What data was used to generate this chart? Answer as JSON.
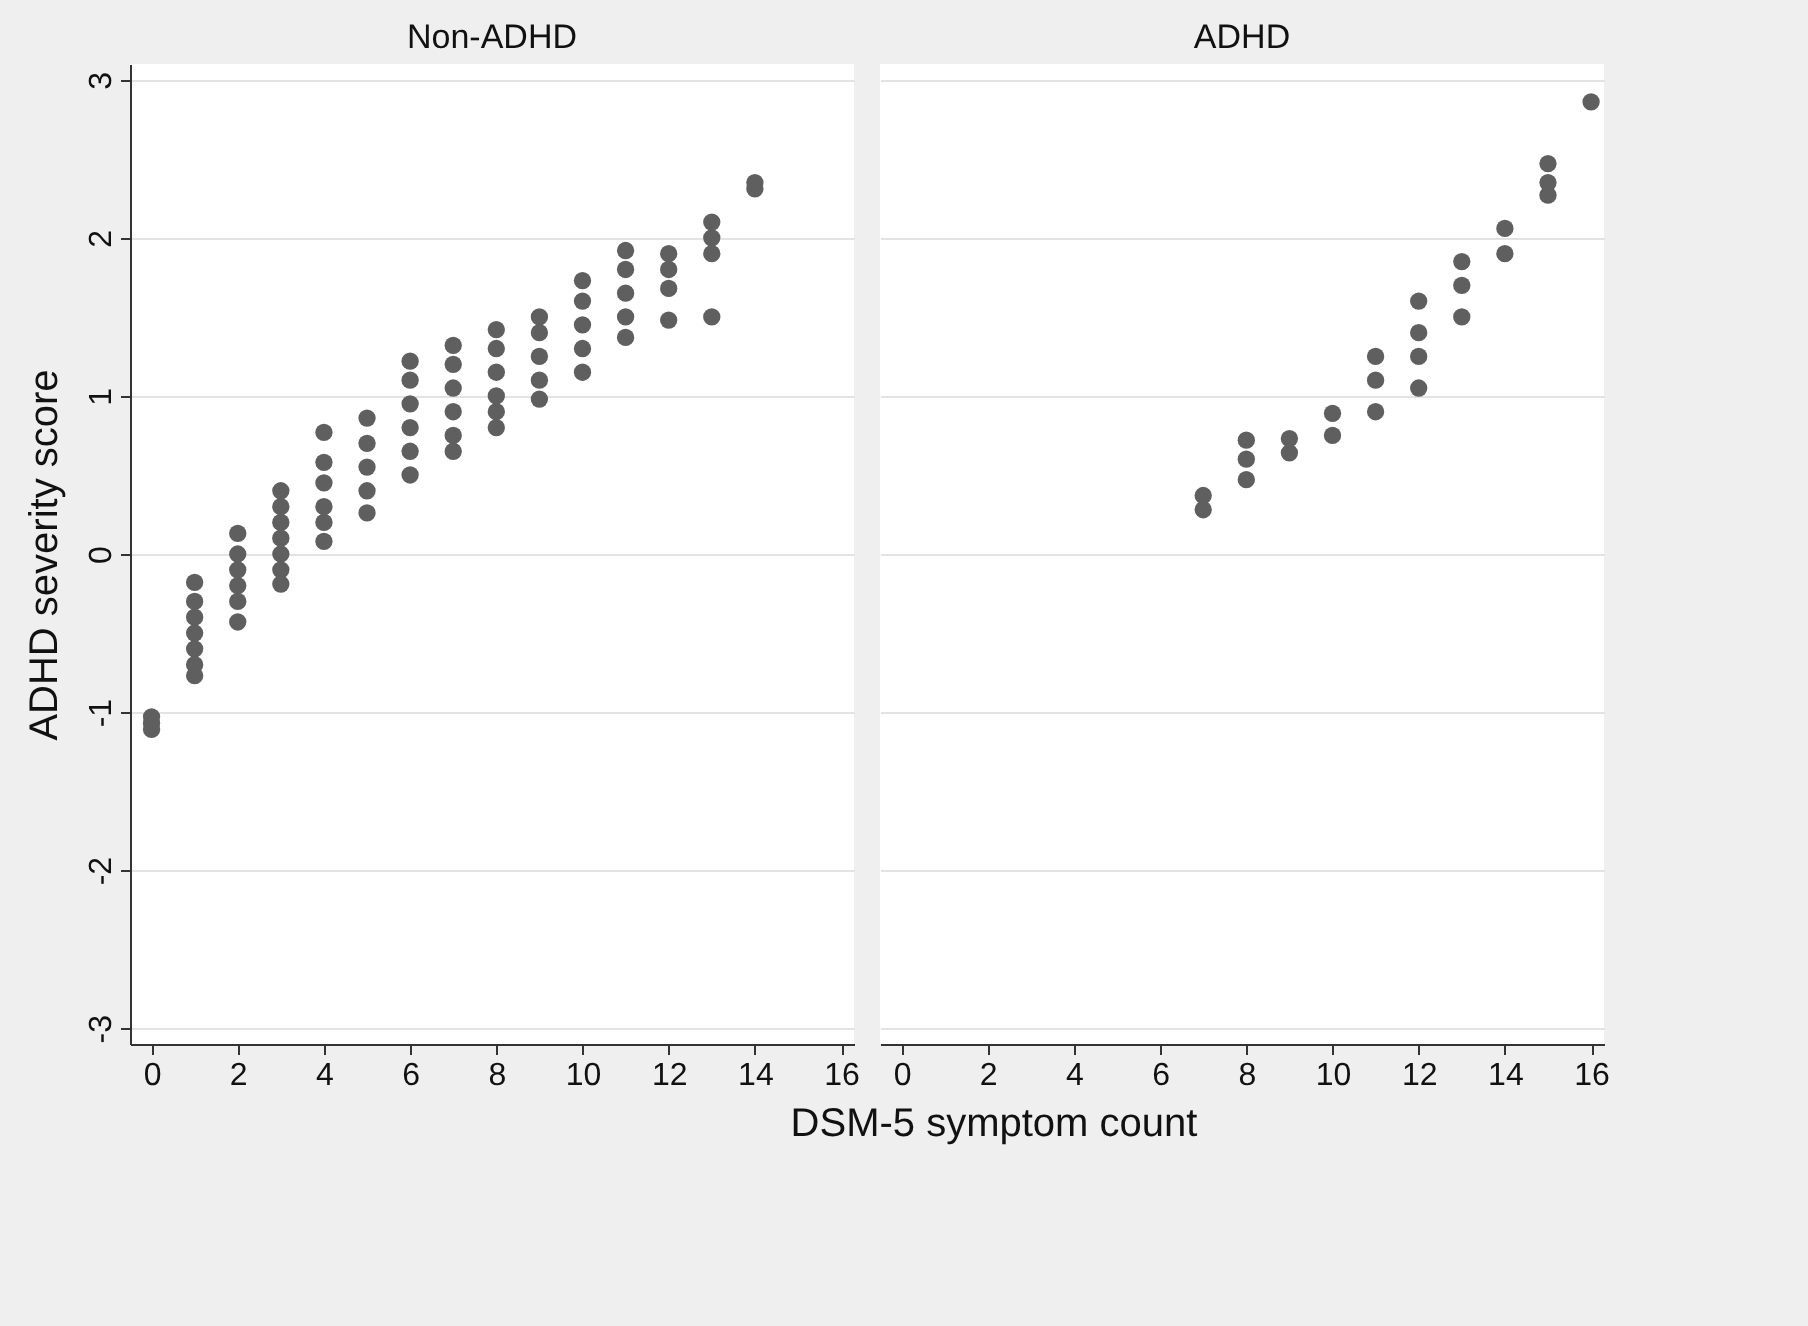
{
  "chart_data": [
    {
      "type": "scatter",
      "title": "Non-ADHD",
      "xlabel": "DSM-5 symptom count",
      "ylabel": "ADHD severity score",
      "xlim": [
        -0.5,
        16.3
      ],
      "ylim": [
        -3.1,
        3.1
      ],
      "xticks": [
        0,
        2,
        4,
        6,
        8,
        10,
        12,
        14,
        16
      ],
      "yticks": [
        -3,
        -2,
        -1,
        0,
        1,
        2,
        3
      ],
      "grid": "y",
      "marker": "circle",
      "series": [
        {
          "color": "#5f5f5f",
          "x": [
            0,
            0,
            0,
            1,
            1,
            1,
            1,
            1,
            1,
            1,
            2,
            2,
            2,
            2,
            2,
            2,
            3,
            3,
            3,
            3,
            3,
            3,
            3,
            4,
            4,
            4,
            4,
            4,
            4,
            5,
            5,
            5,
            5,
            5,
            6,
            6,
            6,
            6,
            6,
            6,
            7,
            7,
            7,
            7,
            7,
            7,
            8,
            8,
            8,
            8,
            8,
            8,
            9,
            9,
            9,
            9,
            9,
            10,
            10,
            10,
            10,
            10,
            11,
            11,
            11,
            11,
            11,
            12,
            12,
            12,
            12,
            13,
            13,
            13,
            13,
            14,
            14
          ],
          "values": [
            -1.03,
            -1.07,
            -1.11,
            -0.18,
            -0.3,
            -0.4,
            -0.5,
            -0.6,
            -0.7,
            -0.77,
            0.13,
            0.0,
            -0.1,
            -0.2,
            -0.3,
            -0.43,
            0.4,
            0.3,
            0.2,
            0.1,
            0.0,
            -0.1,
            -0.19,
            0.77,
            0.58,
            0.45,
            0.3,
            0.2,
            0.08,
            0.86,
            0.7,
            0.55,
            0.4,
            0.26,
            1.22,
            1.1,
            0.95,
            0.8,
            0.65,
            0.5,
            1.32,
            1.2,
            1.05,
            0.9,
            0.75,
            0.65,
            1.42,
            1.3,
            1.15,
            1.0,
            0.9,
            0.8,
            1.5,
            1.4,
            1.25,
            1.1,
            0.98,
            1.73,
            1.6,
            1.45,
            1.3,
            1.15,
            1.92,
            1.8,
            1.65,
            1.5,
            1.37,
            1.9,
            1.8,
            1.68,
            1.48,
            2.1,
            2.0,
            1.9,
            1.5,
            2.35,
            2.31
          ]
        }
      ]
    },
    {
      "type": "scatter",
      "title": "ADHD",
      "xlim": [
        -0.5,
        16.3
      ],
      "ylim": [
        -3.1,
        3.1
      ],
      "xticks": [
        0,
        2,
        4,
        6,
        8,
        10,
        12,
        14,
        16
      ],
      "yticks": [
        -3,
        -2,
        -1,
        0,
        1,
        2,
        3
      ],
      "grid": "y",
      "marker": "circle",
      "tick_labels": "x",
      "series": [
        {
          "color": "#5f5f5f",
          "x": [
            7,
            7,
            8,
            8,
            8,
            9,
            9,
            10,
            10,
            11,
            11,
            11,
            12,
            12,
            12,
            12,
            13,
            13,
            13,
            14,
            14,
            15,
            15,
            15,
            16
          ],
          "values": [
            0.37,
            0.28,
            0.72,
            0.6,
            0.47,
            0.73,
            0.64,
            0.89,
            0.75,
            1.25,
            1.1,
            0.9,
            1.6,
            1.4,
            1.25,
            1.05,
            1.85,
            1.7,
            1.5,
            2.06,
            1.9,
            2.47,
            2.35,
            2.27,
            2.86
          ]
        }
      ]
    }
  ]
}
